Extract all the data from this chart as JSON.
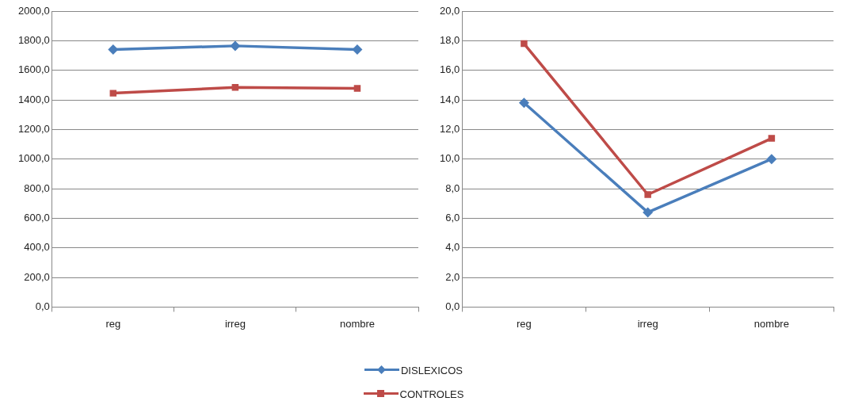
{
  "chart_data": [
    {
      "type": "line",
      "categories": [
        "reg",
        "irreg",
        "nombre"
      ],
      "ylim": [
        0,
        2000
      ],
      "yticks": [
        {
          "value": 0,
          "label": "0,0"
        },
        {
          "value": 200,
          "label": "200,0"
        },
        {
          "value": 400,
          "label": "400,0"
        },
        {
          "value": 600,
          "label": "600,0"
        },
        {
          "value": 800,
          "label": "800,0"
        },
        {
          "value": 1000,
          "label": "1000,0"
        },
        {
          "value": 1200,
          "label": "1200,0"
        },
        {
          "value": 1400,
          "label": "1400,0"
        },
        {
          "value": 1600,
          "label": "1600,0"
        },
        {
          "value": 1800,
          "label": "1800,0"
        },
        {
          "value": 2000,
          "label": "2000,0"
        }
      ],
      "grid": "y",
      "legend": "bottom",
      "series": [
        {
          "name": "DISLEXICOS",
          "color": "#4a7ebb",
          "marker": "diamond",
          "values": [
            1740,
            1765,
            1740
          ]
        },
        {
          "name": "CONTROLES",
          "color": "#be4b48",
          "marker": "square",
          "values": [
            1445,
            1485,
            1478
          ]
        }
      ]
    },
    {
      "type": "line",
      "categories": [
        "reg",
        "irreg",
        "nombre"
      ],
      "ylim": [
        0,
        20
      ],
      "yticks": [
        {
          "value": 0,
          "label": "0,0"
        },
        {
          "value": 2,
          "label": "2,0"
        },
        {
          "value": 4,
          "label": "4,0"
        },
        {
          "value": 6,
          "label": "6,0"
        },
        {
          "value": 8,
          "label": "8,0"
        },
        {
          "value": 10,
          "label": "10,0"
        },
        {
          "value": 12,
          "label": "12,0"
        },
        {
          "value": 14,
          "label": "14,0"
        },
        {
          "value": 16,
          "label": "16,0"
        },
        {
          "value": 18,
          "label": "18,0"
        },
        {
          "value": 20,
          "label": "20,0"
        }
      ],
      "grid": "y",
      "series": [
        {
          "color": "#4a7ebb",
          "marker": "diamond",
          "values": [
            13.8,
            6.4,
            10.0
          ]
        },
        {
          "color": "#be4b48",
          "marker": "square",
          "values": [
            17.8,
            7.6,
            11.4
          ]
        }
      ]
    }
  ]
}
